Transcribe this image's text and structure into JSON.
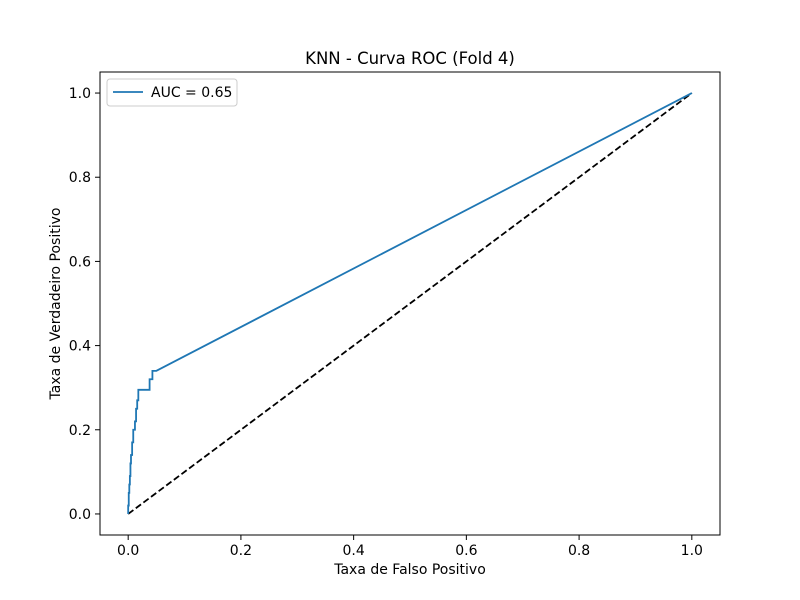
{
  "chart_data": {
    "type": "line",
    "title": "KNN - Curva ROC (Fold 4)",
    "xlabel": "Taxa de Falso Positivo",
    "ylabel": "Taxa de Verdadeiro Positivo",
    "xlim": [
      -0.05,
      1.05
    ],
    "ylim": [
      -0.05,
      1.05
    ],
    "xticks": [
      0.0,
      0.2,
      0.4,
      0.6,
      0.8,
      1.0
    ],
    "yticks": [
      0.0,
      0.2,
      0.4,
      0.6,
      0.8,
      1.0
    ],
    "xtick_labels": [
      "0.0",
      "0.2",
      "0.4",
      "0.6",
      "0.8",
      "1.0"
    ],
    "ytick_labels": [
      "0.0",
      "0.2",
      "0.4",
      "0.6",
      "0.8",
      "1.0"
    ],
    "grid": false,
    "legend_position": "top-left",
    "series": [
      {
        "name": "AUC = 0.65",
        "color": "#1f77b4",
        "style": "solid",
        "x": [
          0.0,
          0.0,
          0.001,
          0.001,
          0.002,
          0.002,
          0.003,
          0.003,
          0.004,
          0.004,
          0.005,
          0.005,
          0.007,
          0.007,
          0.009,
          0.009,
          0.012,
          0.012,
          0.014,
          0.014,
          0.016,
          0.016,
          0.018,
          0.018,
          0.038,
          0.038,
          0.043,
          0.043,
          0.05,
          1.0
        ],
        "y": [
          0.0,
          0.02,
          0.02,
          0.05,
          0.05,
          0.07,
          0.07,
          0.09,
          0.09,
          0.12,
          0.12,
          0.14,
          0.14,
          0.17,
          0.17,
          0.2,
          0.2,
          0.22,
          0.22,
          0.25,
          0.25,
          0.27,
          0.27,
          0.295,
          0.295,
          0.32,
          0.32,
          0.34,
          0.34,
          1.0
        ]
      },
      {
        "color": "#000000",
        "style": "dashed",
        "x": [
          0.0,
          1.0
        ],
        "y": [
          0.0,
          1.0
        ]
      }
    ]
  }
}
